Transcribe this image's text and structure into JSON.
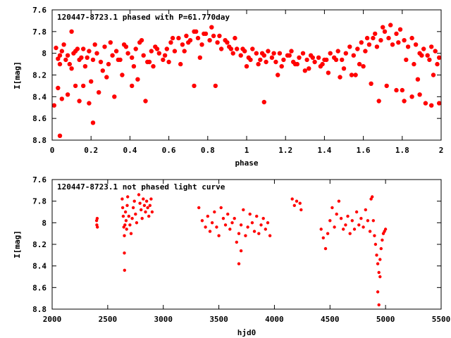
{
  "chart_data": [
    {
      "type": "scatter",
      "title": "120447-8723.1 phased with P=61.770day",
      "xlabel": "phase",
      "ylabel": "I[mag]",
      "xlim": [
        0,
        2
      ],
      "ylim": [
        8.8,
        7.6
      ],
      "y_inverted": true,
      "grid": false,
      "marker_color": "#ff0000",
      "marker": "filled-circle",
      "x_ticks": [
        0,
        0.2,
        0.4,
        0.6,
        0.8,
        1,
        1.2,
        1.4,
        1.6,
        1.8,
        2
      ],
      "x_tick_labels": [
        "0",
        "0.2",
        "0.4",
        "0.6",
        "0.8",
        "1",
        "1.2",
        "1.4",
        "1.6",
        "1.8",
        "2"
      ],
      "y_ticks": [
        7.6,
        7.8,
        8,
        8.2,
        8.4,
        8.6,
        8.8
      ],
      "y_tick_labels": [
        "7.6",
        "7.8",
        "8",
        "8.2",
        "8.4",
        "8.6",
        "8.8"
      ],
      "series": [
        {
          "x": [
            0.01,
            0.03,
            0.04,
            0.05,
            0.07,
            0.09,
            0.11,
            0.13,
            0.15,
            0.17,
            0.19,
            0.21,
            0.23,
            0.25,
            0.27,
            0.29,
            0.31,
            0.33,
            0.35,
            0.37,
            0.39,
            0.41,
            0.43,
            0.45,
            0.47,
            0.49,
            0.51,
            0.53,
            0.55,
            0.57,
            0.59,
            0.61,
            0.63,
            0.65,
            0.67,
            0.69,
            0.71,
            0.73,
            0.75,
            0.77,
            0.79,
            0.81,
            0.83,
            0.85,
            0.87,
            0.89,
            0.91,
            0.93,
            0.95,
            0.97,
            0.99,
            1.01,
            1.03,
            1.05,
            1.07,
            1.09,
            1.11,
            1.13,
            1.15,
            1.17,
            1.19,
            1.21,
            1.23,
            1.25,
            1.27,
            1.29,
            1.31,
            1.33,
            1.35,
            1.37,
            1.39,
            1.41,
            1.43,
            1.45,
            1.47,
            1.49,
            1.51,
            1.53,
            1.55,
            1.57,
            1.59,
            1.61,
            1.63,
            1.65,
            1.67,
            1.69,
            1.71,
            1.73,
            1.75,
            1.77,
            1.79,
            1.81,
            1.83,
            1.85,
            1.87,
            1.89,
            1.91,
            1.93,
            1.95,
            1.97,
            1.99,
            0.02,
            0.04,
            0.06,
            0.08,
            0.1,
            0.12,
            0.14,
            0.16,
            0.18,
            0.22,
            0.26,
            0.3,
            0.34,
            0.38,
            0.42,
            0.46,
            0.5,
            0.54,
            0.58,
            0.62,
            0.66,
            0.7,
            0.74,
            0.78,
            0.82,
            0.86,
            0.9,
            0.94,
            0.98,
            1.02,
            1.06,
            1.1,
            1.14,
            1.18,
            1.22,
            1.26,
            1.3,
            1.34,
            1.38,
            1.42,
            1.46,
            1.5,
            1.54,
            1.58,
            1.62,
            1.66,
            1.7,
            1.74,
            1.78,
            1.82,
            1.86,
            1.9,
            1.94,
            1.98,
            0.03,
            0.05,
            0.08,
            0.12,
            0.16,
            0.2,
            0.28,
            0.36,
            0.44,
            0.52,
            0.6,
            0.68,
            0.76,
            0.84,
            0.92,
            1.0,
            1.08,
            1.16,
            1.24,
            1.32,
            1.4,
            1.48,
            1.56,
            1.64,
            1.72,
            1.8,
            1.88,
            1.96,
            0.04,
            0.1,
            0.14,
            0.19,
            0.21,
            0.24,
            0.32,
            0.41,
            0.48,
            0.73,
            1.09,
            1.6,
            1.68,
            1.77,
            1.81,
            1.85,
            1.89,
            1.92,
            1.95,
            1.99
          ],
          "y": [
            8.48,
            8.05,
            8.02,
            7.98,
            8.06,
            8.1,
            8.0,
            7.96,
            8.04,
            8.12,
            7.98,
            8.06,
            8.0,
            8.08,
            7.94,
            8.1,
            8.02,
            7.98,
            8.06,
            7.92,
            8.0,
            8.04,
            7.96,
            7.9,
            8.02,
            8.08,
            7.98,
            7.94,
            8.0,
            8.06,
            7.96,
            7.9,
            7.98,
            7.86,
            7.92,
            7.84,
            7.88,
            7.8,
            7.86,
            7.92,
            7.82,
            7.88,
            7.84,
            7.9,
            7.96,
            7.88,
            7.94,
            8.0,
            7.96,
            8.02,
            7.98,
            8.04,
            7.96,
            8.0,
            8.06,
            8.02,
            7.98,
            8.04,
            8.08,
            8.0,
            8.06,
            8.02,
            7.98,
            8.1,
            8.04,
            8.0,
            8.06,
            8.02,
            8.08,
            8.04,
            8.1,
            8.06,
            8.0,
            8.04,
            7.98,
            8.06,
            8.0,
            7.94,
            8.02,
            7.96,
            7.9,
            7.98,
            7.92,
            7.86,
            7.94,
            7.88,
            7.8,
            7.86,
            7.92,
            7.82,
            7.78,
            7.88,
            7.94,
            7.86,
            7.92,
            8.0,
            7.96,
            8.02,
            7.94,
            7.98,
            8.04,
            7.95,
            8.1,
            7.92,
            8.02,
            8.14,
            7.98,
            8.06,
            7.96,
            8.04,
            7.92,
            8.16,
            7.9,
            8.06,
            7.94,
            8.12,
            7.88,
            8.08,
            7.96,
            8.02,
            7.86,
            8.1,
            7.9,
            7.8,
            7.82,
            7.76,
            7.84,
            7.9,
            7.86,
            7.96,
            8.06,
            8.1,
            8.08,
            8.0,
            8.12,
            8.02,
            8.1,
            8.16,
            8.04,
            8.12,
            8.18,
            8.06,
            8.14,
            8.2,
            8.1,
            7.86,
            7.82,
            7.76,
            7.74,
            7.9,
            8.06,
            8.1,
            8.02,
            8.06,
            8.1,
            8.32,
            8.42,
            8.38,
            8.3,
            8.3,
            8.26,
            8.22,
            8.2,
            8.24,
            8.12,
            8.08,
            7.98,
            8.04,
            8.3,
            7.96,
            8.12,
            8.0,
            8.2,
            8.08,
            8.14,
            8.06,
            8.22,
            8.2,
            8.28,
            8.3,
            8.34,
            8.24,
            8.2,
            8.76,
            7.8,
            8.44,
            8.46,
            8.64,
            8.36,
            8.4,
            8.3,
            8.44,
            8.3,
            8.45,
            8.12,
            8.44,
            8.34,
            8.44,
            8.4,
            8.38,
            8.46,
            8.48,
            8.46
          ]
        }
      ]
    },
    {
      "type": "scatter",
      "title": "120447-8723.1 not phased light curve",
      "xlabel": "hjd0",
      "ylabel": "I[mag]",
      "xlim": [
        2000,
        5500
      ],
      "ylim": [
        8.8,
        7.6
      ],
      "y_inverted": true,
      "grid": false,
      "marker_color": "#ff0000",
      "marker": "filled-circle",
      "x_ticks": [
        2000,
        2500,
        3000,
        3500,
        4000,
        4500,
        5000,
        5500
      ],
      "x_tick_labels": [
        "2000",
        "2500",
        "3000",
        "3500",
        "4000",
        "4500",
        "5000",
        "5500"
      ],
      "y_ticks": [
        7.6,
        7.8,
        8,
        8.2,
        8.4,
        8.6,
        8.8
      ],
      "y_tick_labels": [
        "7.6",
        "7.8",
        "8",
        "8.2",
        "8.4",
        "8.6",
        "8.8"
      ],
      "series": [
        {
          "x": [
            2400,
            2402,
            2405,
            2407,
            2630,
            2635,
            2640,
            2645,
            2650,
            2655,
            2660,
            2665,
            2670,
            2675,
            2680,
            2690,
            2700,
            2710,
            2720,
            2730,
            2740,
            2750,
            2760,
            2780,
            2790,
            2800,
            2810,
            2820,
            2830,
            2840,
            2850,
            2860,
            2870,
            2880,
            2890,
            2900,
            2650,
            2652,
            3320,
            3350,
            3380,
            3400,
            3420,
            3440,
            3460,
            3480,
            3500,
            3520,
            3540,
            3560,
            3580,
            3600,
            3620,
            3640,
            3660,
            3680,
            3700,
            3720,
            3740,
            3760,
            3780,
            3800,
            3820,
            3840,
            3860,
            3880,
            3900,
            3920,
            3940,
            3960,
            3680,
            3700,
            4160,
            4180,
            4200,
            4230,
            4240,
            4420,
            4440,
            4460,
            4480,
            4500,
            4520,
            4540,
            4560,
            4580,
            4600,
            4620,
            4640,
            4660,
            4680,
            4700,
            4720,
            4740,
            4760,
            4780,
            4800,
            4820,
            4840,
            4860,
            4870,
            4880,
            4890,
            4900,
            4910,
            4920,
            4930,
            4940,
            4950,
            4960,
            4970,
            4980,
            4990,
            5000,
            4930,
            4940,
            4950
          ],
          "y": [
            7.98,
            8.02,
            7.96,
            8.04,
            7.78,
            7.86,
            7.94,
            8.04,
            8.12,
            8.02,
            7.9,
            7.98,
            8.06,
            7.84,
            7.76,
            7.94,
            8.02,
            8.1,
            7.96,
            7.86,
            7.8,
            7.92,
            8.0,
            7.74,
            7.82,
            7.88,
            7.96,
            7.78,
            7.84,
            7.9,
            7.8,
            7.86,
            7.94,
            7.84,
            7.78,
            7.9,
            8.28,
            8.44,
            7.86,
            7.98,
            8.04,
            7.94,
            8.08,
            8.0,
            7.9,
            8.04,
            8.12,
            7.86,
            7.96,
            8.02,
            7.92,
            8.06,
            8.0,
            7.96,
            8.18,
            8.1,
            8.02,
            7.88,
            8.12,
            8.04,
            7.92,
            8.0,
            8.08,
            7.94,
            8.1,
            8.02,
            7.96,
            8.06,
            8.0,
            8.12,
            8.38,
            8.26,
            7.78,
            7.84,
            7.8,
            7.82,
            7.88,
            8.06,
            8.14,
            8.24,
            8.1,
            7.98,
            7.86,
            8.04,
            7.92,
            7.8,
            7.96,
            8.06,
            8.02,
            7.94,
            8.1,
            7.98,
            8.06,
            7.9,
            8.02,
            7.96,
            8.04,
            7.88,
            7.98,
            8.08,
            7.78,
            7.76,
            7.98,
            8.12,
            8.2,
            8.3,
            8.38,
            8.46,
            8.34,
            8.24,
            8.16,
            8.1,
            8.08,
            8.06,
            8.64,
            8.76,
            8.5
          ]
        }
      ]
    }
  ]
}
